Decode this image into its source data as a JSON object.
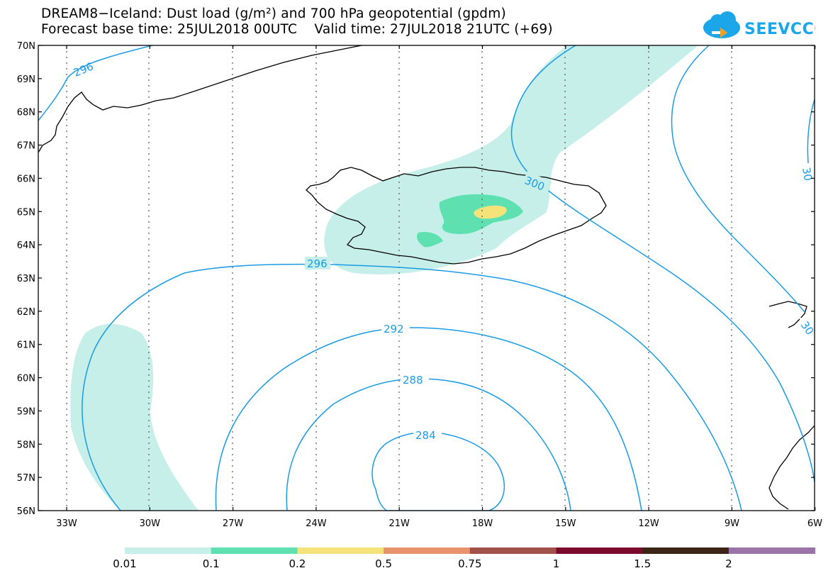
{
  "header": {
    "title_line1": "DREAM8−Iceland: Dust load (g/m²) and 700 hPa geopotential (gpdm)",
    "title_line2": "Forecast base time: 25JUL2018 00UTC    Valid time: 27JUL2018 21UTC (+69)",
    "logo_text": "SEEVCCC",
    "logo_icon": "cloud-icon"
  },
  "map": {
    "lat_labels": [
      "70N",
      "69N",
      "68N",
      "67N",
      "66N",
      "65N",
      "64N",
      "63N",
      "62N",
      "61N",
      "60N",
      "59N",
      "58N",
      "57N",
      "56N"
    ],
    "lon_labels": [
      "33W",
      "30W",
      "27W",
      "24W",
      "21W",
      "18W",
      "15W",
      "12W",
      "9W",
      "6W"
    ],
    "contour_labels": [
      "296",
      "296",
      "300",
      "30",
      "30",
      "292",
      "288",
      "284"
    ],
    "colors": {
      "contour": "#1a9be6",
      "coast": "#000000",
      "dust_0_01": "#c5efe8",
      "dust_0_1": "#5fe0b0",
      "dust_0_2": "#f5e37a"
    }
  },
  "legend": {
    "labels": [
      "0.01",
      "0.1",
      "0.2",
      "0.5",
      "0.75",
      "1",
      "1.5",
      "2"
    ],
    "colors": [
      "#c5efe8",
      "#5fe0b0",
      "#f5e37a",
      "#e8936b",
      "#a0524a",
      "#7b0a2e",
      "#3b2316",
      "#9a73a8"
    ]
  }
}
